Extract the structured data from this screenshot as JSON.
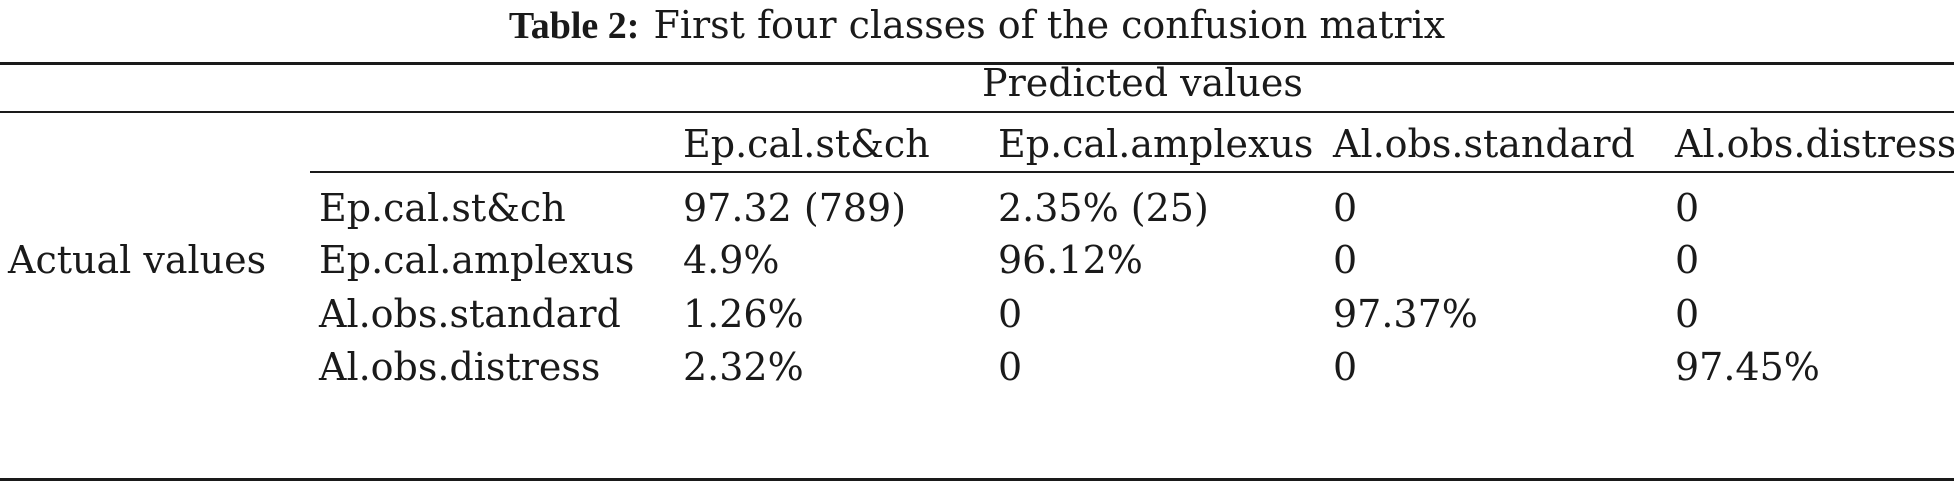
{
  "caption": {
    "label": "Table 2:",
    "text": "First four classes of the confusion matrix"
  },
  "table": {
    "predicted_header": "Predicted values",
    "actual_header": "Actual values",
    "columns": [
      "Ep.cal.st&ch",
      "Ep.cal.amplexus",
      "Al.obs.standard",
      "Al.obs.distress"
    ],
    "rows": [
      {
        "label": "Ep.cal.st&ch",
        "cells": [
          "97.32 (789)",
          "2.35% (25)",
          "0",
          "0"
        ]
      },
      {
        "label": "Ep.cal.amplexus",
        "cells": [
          "4.9%",
          "96.12%",
          "0",
          "0"
        ]
      },
      {
        "label": "Al.obs.standard",
        "cells": [
          "1.26%",
          "0",
          "97.37%",
          "0"
        ]
      },
      {
        "label": "Al.obs.distress",
        "cells": [
          "2.32%",
          "0",
          "0",
          "97.45%"
        ]
      }
    ]
  }
}
